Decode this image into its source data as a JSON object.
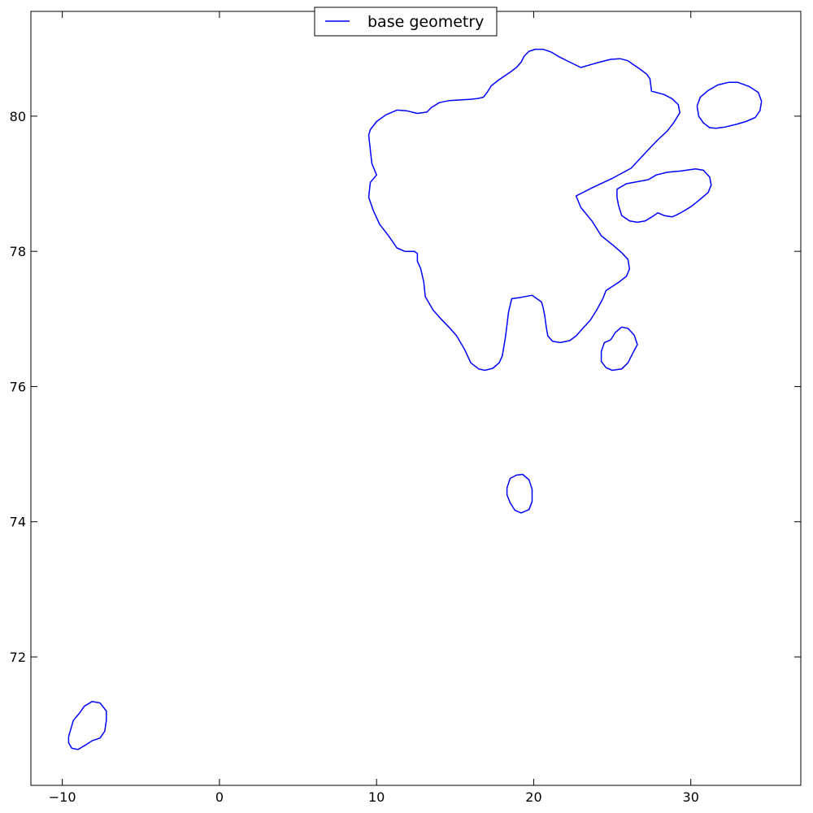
{
  "chart_data": {
    "type": "line",
    "title": "",
    "xlabel": "",
    "ylabel": "",
    "xlim": [
      -12,
      37
    ],
    "ylim": [
      70.1,
      81.55
    ],
    "x_ticks": [
      -10,
      0,
      10,
      20,
      30
    ],
    "x_tick_labels": [
      "−10",
      "0",
      "10",
      "20",
      "30"
    ],
    "y_ticks": [
      72,
      74,
      76,
      78,
      80
    ],
    "y_tick_labels": [
      "72",
      "74",
      "76",
      "78",
      "80"
    ],
    "grid": false,
    "legend": {
      "placement": "top-center",
      "entries": [
        "base geometry"
      ]
    },
    "series": [
      {
        "name": "base geometry",
        "color": "#0000ff",
        "polygons": [
          [
            [
              9.6,
              79.8
            ],
            [
              10.0,
              79.92
            ],
            [
              10.6,
              80.02
            ],
            [
              11.3,
              80.09
            ],
            [
              11.9,
              80.08
            ],
            [
              12.6,
              80.04
            ],
            [
              13.2,
              80.06
            ],
            [
              13.5,
              80.13
            ],
            [
              14.0,
              80.2
            ],
            [
              14.6,
              80.23
            ],
            [
              16.0,
              80.25
            ],
            [
              16.4,
              80.26
            ],
            [
              16.8,
              80.28
            ],
            [
              17.0,
              80.34
            ],
            [
              17.3,
              80.45
            ],
            [
              17.8,
              80.54
            ],
            [
              18.5,
              80.65
            ],
            [
              18.9,
              80.72
            ],
            [
              19.2,
              80.8
            ],
            [
              19.4,
              80.89
            ],
            [
              19.7,
              80.96
            ],
            [
              20.1,
              80.99
            ],
            [
              20.6,
              80.99
            ],
            [
              21.1,
              80.95
            ],
            [
              21.6,
              80.88
            ],
            [
              22.2,
              80.81
            ],
            [
              23.0,
              80.72
            ],
            [
              23.6,
              80.76
            ],
            [
              24.2,
              80.8
            ],
            [
              24.9,
              80.84
            ],
            [
              25.5,
              80.85
            ],
            [
              26.0,
              80.82
            ],
            [
              26.3,
              80.77
            ],
            [
              26.8,
              80.69
            ],
            [
              27.2,
              80.62
            ],
            [
              27.4,
              80.55
            ],
            [
              27.5,
              80.37
            ],
            [
              28.3,
              80.32
            ],
            [
              28.8,
              80.26
            ],
            [
              29.2,
              80.17
            ],
            [
              29.3,
              80.05
            ],
            [
              28.9,
              79.9
            ],
            [
              28.5,
              79.78
            ],
            [
              27.9,
              79.65
            ],
            [
              27.4,
              79.53
            ],
            [
              26.8,
              79.38
            ],
            [
              26.2,
              79.23
            ],
            [
              25.0,
              79.08
            ],
            [
              23.8,
              78.95
            ],
            [
              22.7,
              78.82
            ],
            [
              23.0,
              78.65
            ],
            [
              23.7,
              78.45
            ],
            [
              24.3,
              78.23
            ],
            [
              25.0,
              78.1
            ],
            [
              25.6,
              77.98
            ],
            [
              26.0,
              77.88
            ],
            [
              26.1,
              77.74
            ],
            [
              25.9,
              77.63
            ],
            [
              25.4,
              77.54
            ],
            [
              24.6,
              77.42
            ],
            [
              24.4,
              77.3
            ],
            [
              24.0,
              77.13
            ],
            [
              23.6,
              76.98
            ],
            [
              23.2,
              76.88
            ],
            [
              22.7,
              76.75
            ],
            [
              22.3,
              76.68
            ],
            [
              21.7,
              76.65
            ],
            [
              21.2,
              76.67
            ],
            [
              20.9,
              76.75
            ],
            [
              20.8,
              76.88
            ],
            [
              20.7,
              77.05
            ],
            [
              20.6,
              77.17
            ],
            [
              20.5,
              77.25
            ],
            [
              19.9,
              77.35
            ],
            [
              19.2,
              77.32
            ],
            [
              18.6,
              77.3
            ],
            [
              18.4,
              77.1
            ],
            [
              18.2,
              76.73
            ],
            [
              18.0,
              76.45
            ],
            [
              17.8,
              76.35
            ],
            [
              17.4,
              76.27
            ],
            [
              16.9,
              76.24
            ],
            [
              16.5,
              76.26
            ],
            [
              16.0,
              76.35
            ],
            [
              15.6,
              76.55
            ],
            [
              15.1,
              76.75
            ],
            [
              14.6,
              76.88
            ],
            [
              14.1,
              77.0
            ],
            [
              13.6,
              77.13
            ],
            [
              13.1,
              77.33
            ],
            [
              13.0,
              77.55
            ],
            [
              12.8,
              77.75
            ],
            [
              12.6,
              77.85
            ],
            [
              12.6,
              77.97
            ],
            [
              12.4,
              78.0
            ],
            [
              11.8,
              78.0
            ],
            [
              11.3,
              78.05
            ],
            [
              10.8,
              78.22
            ],
            [
              10.2,
              78.4
            ],
            [
              9.8,
              78.6
            ],
            [
              9.5,
              78.8
            ],
            [
              9.6,
              79.02
            ],
            [
              10.0,
              79.13
            ],
            [
              9.7,
              79.3
            ],
            [
              9.6,
              79.5
            ],
            [
              9.5,
              79.72
            ],
            [
              9.6,
              79.8
            ]
          ],
          [
            [
              25.3,
              78.92
            ],
            [
              25.9,
              79.0
            ],
            [
              26.6,
              79.03
            ],
            [
              27.3,
              79.06
            ],
            [
              27.8,
              79.13
            ],
            [
              28.5,
              79.17
            ],
            [
              29.4,
              79.19
            ],
            [
              30.3,
              79.22
            ],
            [
              30.8,
              79.2
            ],
            [
              31.2,
              79.1
            ],
            [
              31.3,
              78.98
            ],
            [
              31.1,
              78.87
            ],
            [
              30.6,
              78.77
            ],
            [
              30.0,
              78.66
            ],
            [
              29.5,
              78.59
            ],
            [
              29.1,
              78.54
            ],
            [
              28.8,
              78.51
            ],
            [
              28.3,
              78.53
            ],
            [
              27.9,
              78.57
            ],
            [
              27.6,
              78.52
            ],
            [
              27.1,
              78.45
            ],
            [
              26.6,
              78.43
            ],
            [
              26.1,
              78.45
            ],
            [
              25.6,
              78.53
            ],
            [
              25.4,
              78.68
            ],
            [
              25.3,
              78.8
            ],
            [
              25.3,
              78.92
            ]
          ],
          [
            [
              30.4,
              80.15
            ],
            [
              30.6,
              80.28
            ],
            [
              31.1,
              80.38
            ],
            [
              31.7,
              80.46
            ],
            [
              32.4,
              80.5
            ],
            [
              33.0,
              80.5
            ],
            [
              33.7,
              80.44
            ],
            [
              34.3,
              80.35
            ],
            [
              34.5,
              80.22
            ],
            [
              34.4,
              80.08
            ],
            [
              34.1,
              79.98
            ],
            [
              33.5,
              79.92
            ],
            [
              32.9,
              79.88
            ],
            [
              32.2,
              79.84
            ],
            [
              31.6,
              79.82
            ],
            [
              31.2,
              79.83
            ],
            [
              30.8,
              79.9
            ],
            [
              30.5,
              80.0
            ],
            [
              30.4,
              80.15
            ]
          ],
          [
            [
              24.9,
              76.69
            ],
            [
              25.2,
              76.8
            ],
            [
              25.6,
              76.88
            ],
            [
              26.0,
              76.86
            ],
            [
              26.4,
              76.76
            ],
            [
              26.6,
              76.62
            ],
            [
              26.3,
              76.49
            ],
            [
              26.0,
              76.35
            ],
            [
              25.6,
              76.26
            ],
            [
              25.0,
              76.24
            ],
            [
              24.6,
              76.28
            ],
            [
              24.3,
              76.37
            ],
            [
              24.3,
              76.52
            ],
            [
              24.5,
              76.65
            ],
            [
              24.9,
              76.69
            ]
          ],
          [
            [
              18.3,
              74.5
            ],
            [
              18.5,
              74.64
            ],
            [
              18.9,
              74.69
            ],
            [
              19.3,
              74.7
            ],
            [
              19.7,
              74.62
            ],
            [
              19.9,
              74.48
            ],
            [
              19.9,
              74.3
            ],
            [
              19.7,
              74.18
            ],
            [
              19.2,
              74.13
            ],
            [
              18.8,
              74.17
            ],
            [
              18.5,
              74.28
            ],
            [
              18.3,
              74.4
            ],
            [
              18.3,
              74.5
            ]
          ],
          [
            [
              -9.6,
              70.82
            ],
            [
              -9.3,
              71.06
            ],
            [
              -8.9,
              71.17
            ],
            [
              -8.6,
              71.27
            ],
            [
              -8.1,
              71.34
            ],
            [
              -7.6,
              71.32
            ],
            [
              -7.2,
              71.2
            ],
            [
              -7.2,
              71.06
            ],
            [
              -7.3,
              70.9
            ],
            [
              -7.6,
              70.8
            ],
            [
              -8.1,
              70.76
            ],
            [
              -8.5,
              70.7
            ],
            [
              -9.0,
              70.63
            ],
            [
              -9.4,
              70.65
            ],
            [
              -9.6,
              70.73
            ],
            [
              -9.6,
              70.82
            ]
          ]
        ]
      }
    ]
  }
}
